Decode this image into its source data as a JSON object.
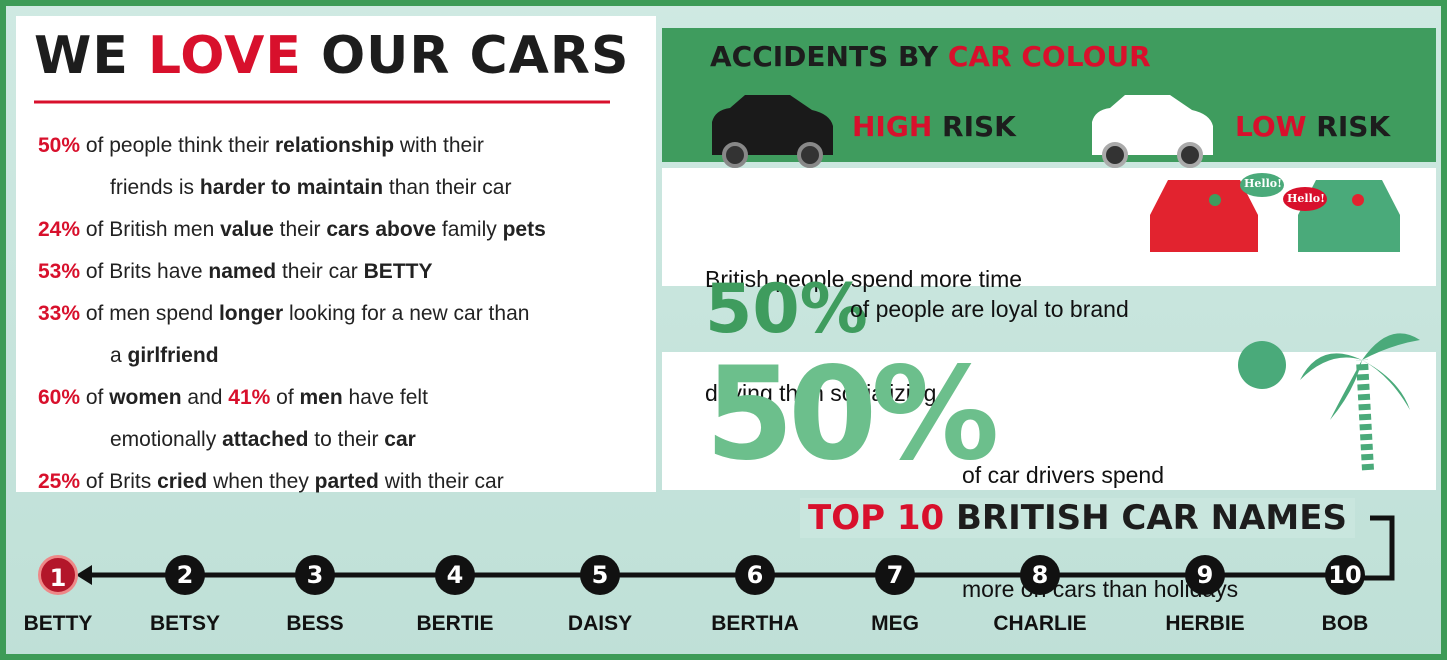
{
  "left": {
    "title": [
      {
        "text": "WE ",
        "style": "dark"
      },
      {
        "text": "LOVE",
        "style": "red"
      },
      {
        "text": " OUR CARS",
        "style": "dark"
      }
    ],
    "stats": [
      {
        "lines": [
          [
            {
              "text": "50%",
              "style": "red"
            },
            {
              "text": " of people think their ",
              "style": "plain"
            },
            {
              "text": "relationship",
              "style": "bold"
            },
            {
              "text": " with their",
              "style": "plain"
            }
          ],
          [
            {
              "text": "friends is ",
              "style": "plain"
            },
            {
              "text": "harder to maintain",
              "style": "bold"
            },
            {
              "text": " than their car",
              "style": "plain"
            }
          ]
        ]
      },
      {
        "lines": [
          [
            {
              "text": "24%",
              "style": "red"
            },
            {
              "text": " of British men ",
              "style": "plain"
            },
            {
              "text": "value",
              "style": "bold"
            },
            {
              "text": " their ",
              "style": "plain"
            },
            {
              "text": "cars above",
              "style": "bold"
            },
            {
              "text": " family ",
              "style": "plain"
            },
            {
              "text": "pets",
              "style": "bold"
            }
          ]
        ]
      },
      {
        "lines": [
          [
            {
              "text": "53%",
              "style": "red"
            },
            {
              "text": " of Brits have ",
              "style": "plain"
            },
            {
              "text": "named",
              "style": "bold"
            },
            {
              "text": " their car ",
              "style": "plain"
            },
            {
              "text": "BETTY",
              "style": "bold"
            }
          ]
        ]
      },
      {
        "lines": [
          [
            {
              "text": "33%",
              "style": "red"
            },
            {
              "text": " of men spend ",
              "style": "plain"
            },
            {
              "text": "longer",
              "style": "bold"
            },
            {
              "text": " looking for a new car than",
              "style": "plain"
            }
          ],
          [
            {
              "text": "a ",
              "style": "plain"
            },
            {
              "text": "girlfriend",
              "style": "bold"
            }
          ]
        ]
      },
      {
        "lines": [
          [
            {
              "text": "60%",
              "style": "red"
            },
            {
              "text": " of ",
              "style": "plain"
            },
            {
              "text": "women",
              "style": "bold"
            },
            {
              "text": " and ",
              "style": "plain"
            },
            {
              "text": "41%",
              "style": "red"
            },
            {
              "text": " of ",
              "style": "plain"
            },
            {
              "text": "men",
              "style": "bold"
            },
            {
              "text": " have felt",
              "style": "plain"
            }
          ],
          [
            {
              "text": "emotionally ",
              "style": "plain"
            },
            {
              "text": "attached",
              "style": "bold"
            },
            {
              "text": " to their ",
              "style": "plain"
            },
            {
              "text": "car",
              "style": "bold"
            }
          ]
        ]
      },
      {
        "lines": [
          [
            {
              "text": "25%",
              "style": "red"
            },
            {
              "text": " of Brits ",
              "style": "plain"
            },
            {
              "text": "cried",
              "style": "bold"
            },
            {
              "text": " when they ",
              "style": "plain"
            },
            {
              "text": "parted",
              "style": "bold"
            },
            {
              "text": " with their car",
              "style": "plain"
            }
          ]
        ]
      }
    ]
  },
  "accidents": {
    "title": [
      {
        "text": "ACCIDENTS BY ",
        "style": "dark"
      },
      {
        "text": "CAR COLOUR",
        "style": "red"
      }
    ],
    "high": [
      {
        "text": "HIGH",
        "style": "red"
      },
      {
        "text": " RISK",
        "style": "dark"
      }
    ],
    "low": [
      {
        "text": "LOW",
        "style": "red"
      },
      {
        "text": " RISK",
        "style": "dark"
      }
    ]
  },
  "social": {
    "lines": [
      "British people spend more time",
      "driving than socializing"
    ],
    "bubbles": [
      "Hello!",
      "Hello!"
    ]
  },
  "loyal": {
    "percent": "50%",
    "text": "of people are loyal to brand"
  },
  "holidays": {
    "percent": "50%",
    "lines": [
      "of car drivers spend",
      "more on cars than holidays"
    ]
  },
  "top10": {
    "title": [
      {
        "text": "TOP 10",
        "style": "red"
      },
      {
        "text": " BRITISH CAR NAMES",
        "style": "dark"
      }
    ],
    "names": [
      {
        "rank": 1,
        "name": "BETTY"
      },
      {
        "rank": 2,
        "name": "BETSY"
      },
      {
        "rank": 3,
        "name": "BESS"
      },
      {
        "rank": 4,
        "name": "BERTIE"
      },
      {
        "rank": 5,
        "name": "DAISY"
      },
      {
        "rank": 6,
        "name": "BERTHA"
      },
      {
        "rank": 7,
        "name": "MEG"
      },
      {
        "rank": 8,
        "name": "CHARLIE"
      },
      {
        "rank": 9,
        "name": "HERBIE"
      },
      {
        "rank": 10,
        "name": "BOB"
      }
    ]
  }
}
